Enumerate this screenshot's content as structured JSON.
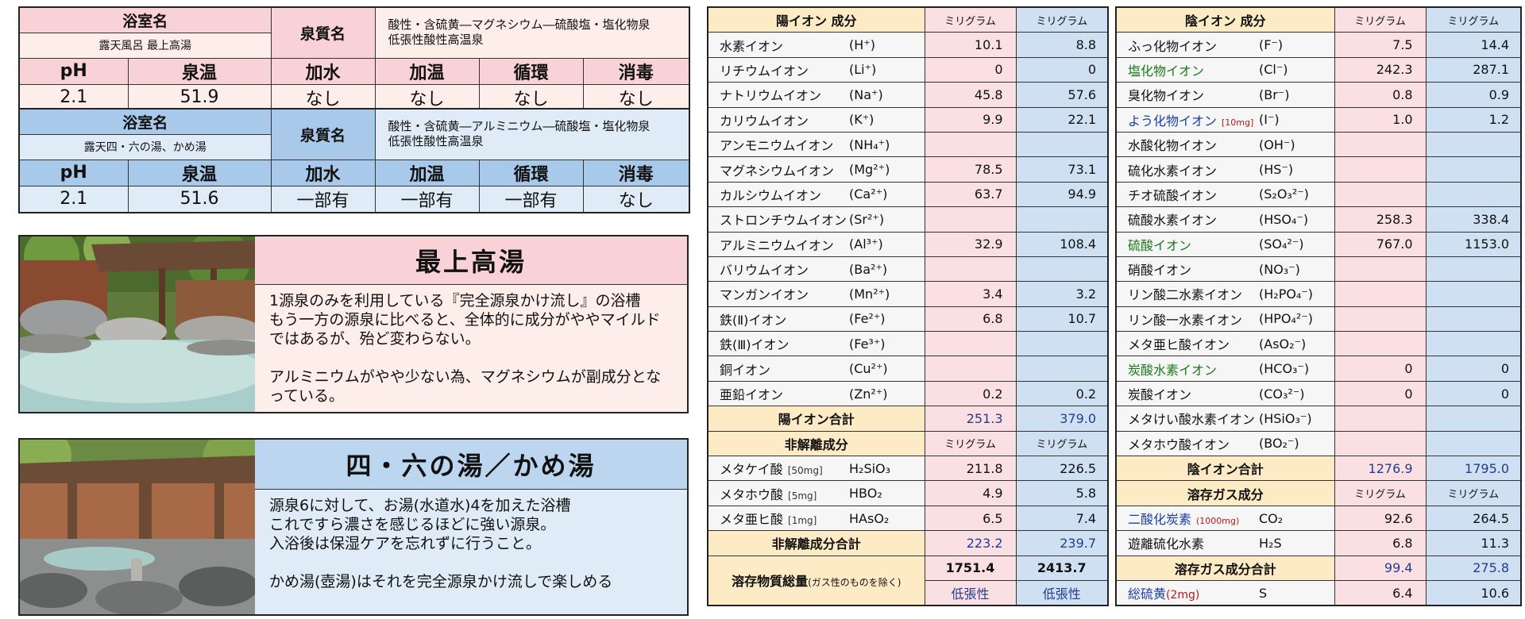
{
  "bath1": {
    "room_label": "浴室名",
    "room_name": "露天風呂 最上高湯",
    "spring_label": "泉質名",
    "spring_name": "酸性・含硫黄―マグネシウム―硫酸塩・塩化物泉\n低張性酸性高温泉",
    "headers": [
      "pH",
      "泉温",
      "加水",
      "加温",
      "循環",
      "消毒"
    ],
    "values": [
      "2.1",
      "51.9",
      "なし",
      "なし",
      "なし",
      "なし"
    ]
  },
  "bath2": {
    "room_label": "浴室名",
    "room_name": "露天四・六の湯、かめ湯",
    "spring_label": "泉質名",
    "spring_name": "酸性・含硫黄―アルミニウム―硫酸塩・塩化物泉\n低張性酸性高温泉",
    "headers": [
      "pH",
      "泉温",
      "加水",
      "加温",
      "循環",
      "消毒"
    ],
    "values": [
      "2.1",
      "51.6",
      "一部有",
      "一部有",
      "一部有",
      "なし"
    ]
  },
  "panel1": {
    "title": "最上高湯",
    "body": "1源泉のみを利用している『完全源泉かけ流し』の浴槽\nもう一方の源泉に比べると、全体的に成分がややマイルドではあるが、殆ど変わらない。\n\nアルミニウムがやや少ない為、マグネシウムが副成分となっている。"
  },
  "panel2": {
    "title": "四・六の湯／かめ湯",
    "body": "源泉6に対して、お湯(水道水)4を加えた浴槽\nこれですら濃さを感じるほどに強い源泉。\n入浴後は保湿ケアを忘れずに行うこと。\n\nかめ湯(壺湯)はそれを完全源泉かけ流しで楽しめる"
  },
  "cation": {
    "section_title": "陽イオン 成分",
    "unit1": "ミリグラム",
    "unit2": "ミリグラム",
    "rows": [
      {
        "name": "水素イオン",
        "formula": "(H⁺)",
        "v1": "10.1",
        "v2": "8.8"
      },
      {
        "name": "リチウムイオン",
        "formula": "(Li⁺)",
        "v1": "0",
        "v2": "0"
      },
      {
        "name": "ナトリウムイオン",
        "formula": "(Na⁺)",
        "v1": "45.8",
        "v2": "57.6"
      },
      {
        "name": "カリウムイオン",
        "formula": "(K⁺)",
        "v1": "9.9",
        "v2": "22.1"
      },
      {
        "name": "アンモニウムイオン",
        "formula": "(NH₄⁺)",
        "v1": "",
        "v2": ""
      },
      {
        "name": "マグネシウムイオン",
        "formula": "(Mg²⁺)",
        "v1": "78.5",
        "v2": "73.1"
      },
      {
        "name": "カルシウムイオン",
        "formula": "(Ca²⁺)",
        "v1": "63.7",
        "v2": "94.9"
      },
      {
        "name": "ストロンチウムイオン",
        "formula": "(Sr²⁺)",
        "v1": "",
        "v2": ""
      },
      {
        "name": "アルミニウムイオン",
        "formula": "(Al³⁺)",
        "v1": "32.9",
        "v2": "108.4"
      },
      {
        "name": "バリウムイオン",
        "formula": "(Ba²⁺)",
        "v1": "",
        "v2": ""
      },
      {
        "name": "マンガンイオン",
        "formula": "(Mn²⁺)",
        "v1": "3.4",
        "v2": "3.2"
      },
      {
        "name": "鉄(Ⅱ)イオン",
        "formula": "(Fe²⁺)",
        "v1": "6.8",
        "v2": "10.7"
      },
      {
        "name": "鉄(Ⅲ)イオン",
        "formula": "(Fe³⁺)",
        "v1": "",
        "v2": ""
      },
      {
        "name": "銅イオン",
        "formula": "(Cu²⁺)",
        "v1": "",
        "v2": ""
      },
      {
        "name": "亜鉛イオン",
        "formula": "(Zn²⁺)",
        "v1": "0.2",
        "v2": "0.2"
      }
    ],
    "total_label": "陽イオン合計",
    "total1": "251.3",
    "total2": "379.0"
  },
  "nondiss": {
    "section_title": "非解離成分",
    "unit1": "ミリグラム",
    "unit2": "ミリグラム",
    "rows": [
      {
        "name": "メタケイ酸",
        "note": "[50mg]",
        "formula": "H₂SiO₃",
        "v1": "211.8",
        "v2": "226.5"
      },
      {
        "name": "メタホウ酸",
        "note": "[5mg]",
        "formula": "HBO₂",
        "v1": "4.9",
        "v2": "5.8"
      },
      {
        "name": "メタ亜ヒ酸",
        "note": "[1mg]",
        "formula": "HAsO₂",
        "v1": "6.5",
        "v2": "7.4"
      }
    ],
    "total_label": "非解離成分合計",
    "total1": "223.2",
    "total2": "239.7",
    "dissolved_label": "溶存物質総量",
    "dissolved_note": "(ガス性のものを除く)",
    "dissolved1": "1751.4",
    "dissolved2": "2413.7",
    "tonicity1": "低張性",
    "tonicity2": "低張性"
  },
  "anion": {
    "section_title": "陰イオン 成分",
    "unit1": "ミリグラム",
    "unit2": "ミリグラム",
    "rows": [
      {
        "name": "ふっ化物イオン",
        "note": "",
        "formula": "(F⁻)",
        "v1": "7.5",
        "v2": "14.4",
        "color": ""
      },
      {
        "name": "塩化物イオン",
        "note": "",
        "formula": "(Cl⁻)",
        "v1": "242.3",
        "v2": "287.1",
        "color": "g"
      },
      {
        "name": "臭化物イオン",
        "note": "",
        "formula": "(Br⁻)",
        "v1": "0.8",
        "v2": "0.9",
        "color": ""
      },
      {
        "name": "よう化物イオン",
        "note": "[10mg]",
        "formula": "(I⁻)",
        "v1": "1.0",
        "v2": "1.2",
        "color": "b"
      },
      {
        "name": "水酸化物イオン",
        "note": "",
        "formula": "(OH⁻)",
        "v1": "",
        "v2": "",
        "color": ""
      },
      {
        "name": "硫化水素イオン",
        "note": "",
        "formula": "(HS⁻)",
        "v1": "",
        "v2": "",
        "color": ""
      },
      {
        "name": "チオ硫酸イオン",
        "note": "",
        "formula": "(S₂O₃²⁻)",
        "v1": "",
        "v2": "",
        "color": ""
      },
      {
        "name": "硫酸水素イオン",
        "note": "",
        "formula": "(HSO₄⁻)",
        "v1": "258.3",
        "v2": "338.4",
        "color": ""
      },
      {
        "name": "硫酸イオン",
        "note": "",
        "formula": "(SO₄²⁻)",
        "v1": "767.0",
        "v2": "1153.0",
        "color": "g"
      },
      {
        "name": "硝酸イオン",
        "note": "",
        "formula": "(NO₃⁻)",
        "v1": "",
        "v2": "",
        "color": ""
      },
      {
        "name": "リン酸二水素イオン",
        "note": "",
        "formula": "(H₂PO₄⁻)",
        "v1": "",
        "v2": "",
        "color": ""
      },
      {
        "name": "リン酸一水素イオン",
        "note": "",
        "formula": "(HPO₄²⁻)",
        "v1": "",
        "v2": "",
        "color": ""
      },
      {
        "name": "メタ亜ヒ酸イオン",
        "note": "",
        "formula": "(AsO₂⁻)",
        "v1": "",
        "v2": "",
        "color": ""
      },
      {
        "name": "炭酸水素イオン",
        "note": "",
        "formula": "(HCO₃⁻)",
        "v1": "0",
        "v2": "0",
        "color": "g"
      },
      {
        "name": "炭酸イオン",
        "note": "",
        "formula": "(CO₃²⁻)",
        "v1": "0",
        "v2": "0",
        "color": ""
      },
      {
        "name": "メタけい酸水素イオン",
        "note": "",
        "formula": "(HSiO₃⁻)",
        "v1": "",
        "v2": "",
        "color": ""
      },
      {
        "name": "メタホウ酸イオン",
        "note": "",
        "formula": "(BO₂⁻)",
        "v1": "",
        "v2": "",
        "color": ""
      }
    ],
    "total_label": "陰イオン合計",
    "total1": "1276.9",
    "total2": "1795.0"
  },
  "gas": {
    "section_title": "溶存ガス成分",
    "unit1": "ミリグラム",
    "unit2": "ミリグラム",
    "rows": [
      {
        "name": "二酸化炭素",
        "note": "(1000mg)",
        "formula": "CO₂",
        "v1": "92.6",
        "v2": "264.5",
        "color": "b"
      },
      {
        "name": "遊離硫化水素",
        "note": "",
        "formula": "H₂S",
        "v1": "6.8",
        "v2": "11.3",
        "color": ""
      }
    ],
    "total_label": "溶存ガス成分合計",
    "total1": "99.4",
    "total2": "275.8",
    "sulfur_name": "総硫黄",
    "sulfur_note": "(2mg)",
    "sulfur_formula": "S",
    "sulfur1": "6.4",
    "sulfur2": "10.6"
  }
}
